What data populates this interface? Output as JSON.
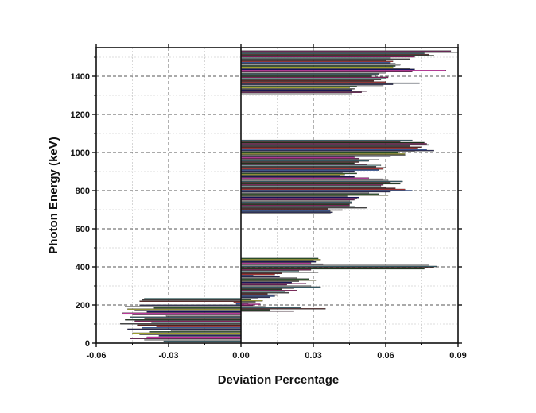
{
  "chart_data": {
    "type": "bar",
    "orientation": "horizontal",
    "title": "",
    "xlabel": "Deviation Percentage",
    "ylabel": "Photon Energy (keV)",
    "xlim": [
      -0.06,
      0.09
    ],
    "ylim": [
      0,
      1550
    ],
    "xticks": [
      -0.06,
      -0.03,
      0.0,
      0.03,
      0.06,
      0.09
    ],
    "xtick_labels": [
      "-0.06",
      "-0.03",
      "0.00",
      "0.03",
      "0.06",
      "0.09"
    ],
    "yticks": [
      0,
      200,
      400,
      600,
      800,
      1000,
      1200,
      1400
    ],
    "ytick_labels": [
      "0",
      "200",
      "400",
      "600",
      "800",
      "1000",
      "1200",
      "1400"
    ],
    "grid": true,
    "palette": [
      "#3a6b78",
      "#d9d9d9",
      "#7a1a60",
      "#ff33cc",
      "#000066",
      "#808080",
      "#cccc33",
      "#2a5c2a",
      "#c0c0c0",
      "#2a2a60",
      "#3366cc",
      "#cc3333",
      "#6a1a1a",
      "#4a4a4a",
      "#99cccc",
      "#a01a6a",
      "#1a3a1a",
      "#663333"
    ],
    "bar_thickness_kev": 4.5,
    "bars": [
      [
        10,
        -0.032
      ],
      [
        17,
        -0.04
      ],
      [
        24,
        -0.046
      ],
      [
        31,
        -0.039
      ],
      [
        38,
        -0.034
      ],
      [
        45,
        -0.042
      ],
      [
        52,
        -0.045
      ],
      [
        59,
        -0.038
      ],
      [
        66,
        -0.029
      ],
      [
        73,
        -0.047
      ],
      [
        80,
        -0.041
      ],
      [
        87,
        -0.035
      ],
      [
        94,
        -0.043
      ],
      [
        101,
        -0.05
      ],
      [
        108,
        -0.037
      ],
      [
        115,
        -0.044
      ],
      [
        122,
        -0.048
      ],
      [
        129,
        -0.04
      ],
      [
        136,
        -0.046
      ],
      [
        143,
        -0.031
      ],
      [
        150,
        -0.045
      ],
      [
        157,
        -0.049
      ],
      [
        164,
        -0.039
      ],
      [
        171,
        -0.044
      ],
      [
        178,
        -0.047
      ],
      [
        185,
        -0.036
      ],
      [
        192,
        -0.048
      ],
      [
        199,
        -0.042
      ],
      [
        206,
        -0.002
      ],
      [
        213,
        -0.003
      ],
      [
        220,
        -0.042
      ],
      [
        227,
        -0.041
      ],
      [
        234,
        -0.04
      ],
      [
        168,
        0.022
      ],
      [
        174,
        0.012
      ],
      [
        180,
        0.035
      ],
      [
        186,
        0.025
      ],
      [
        192,
        0.01
      ],
      [
        198,
        0.005
      ],
      [
        204,
        0.008
      ],
      [
        210,
        0.003
      ],
      [
        216,
        0.006
      ],
      [
        222,
        0.009
      ],
      [
        228,
        0.004
      ],
      [
        234,
        0.007
      ],
      [
        240,
        0.012
      ],
      [
        246,
        0.014
      ],
      [
        252,
        0.015
      ],
      [
        258,
        0.011
      ],
      [
        264,
        0.02
      ],
      [
        270,
        0.018
      ],
      [
        276,
        0.023
      ],
      [
        282,
        0.017
      ],
      [
        288,
        0.022
      ],
      [
        294,
        0.033
      ],
      [
        300,
        0.029
      ],
      [
        306,
        0.019
      ],
      [
        312,
        0.027
      ],
      [
        318,
        0.021
      ],
      [
        324,
        0.024
      ],
      [
        330,
        0.031
      ],
      [
        336,
        0.028
      ],
      [
        342,
        0.023
      ],
      [
        348,
        0.016
      ],
      [
        354,
        0.005
      ],
      [
        360,
        0.014
      ],
      [
        366,
        0.017
      ],
      [
        372,
        0.032
      ],
      [
        378,
        0.024
      ],
      [
        384,
        0.029
      ],
      [
        390,
        0.076
      ],
      [
        396,
        0.08
      ],
      [
        402,
        0.081
      ],
      [
        408,
        0.078
      ],
      [
        414,
        0.034
      ],
      [
        420,
        0.029
      ],
      [
        426,
        0.031
      ],
      [
        432,
        0.03
      ],
      [
        438,
        0.033
      ],
      [
        444,
        0.032
      ],
      [
        680,
        0.037
      ],
      [
        686,
        0.038
      ],
      [
        692,
        0.037
      ],
      [
        698,
        0.042
      ],
      [
        704,
        0.036
      ],
      [
        710,
        0.052
      ],
      [
        716,
        0.047
      ],
      [
        722,
        0.045
      ],
      [
        728,
        0.045
      ],
      [
        734,
        0.046
      ],
      [
        740,
        0.046
      ],
      [
        746,
        0.045
      ],
      [
        752,
        0.047
      ],
      [
        758,
        0.048
      ],
      [
        764,
        0.049
      ],
      [
        770,
        0.044
      ],
      [
        776,
        0.061
      ],
      [
        782,
        0.057
      ],
      [
        788,
        0.053
      ],
      [
        794,
        0.062
      ],
      [
        800,
        0.071
      ],
      [
        806,
        0.068
      ],
      [
        812,
        0.064
      ],
      [
        818,
        0.06
      ],
      [
        824,
        0.058
      ],
      [
        830,
        0.059
      ],
      [
        836,
        0.066
      ],
      [
        842,
        0.062
      ],
      [
        848,
        0.067
      ],
      [
        854,
        0.061
      ],
      [
        860,
        0.059
      ],
      [
        866,
        0.053
      ],
      [
        872,
        0.047
      ],
      [
        878,
        0.041
      ],
      [
        884,
        0.043
      ],
      [
        890,
        0.048
      ],
      [
        896,
        0.042
      ],
      [
        902,
        0.047
      ],
      [
        908,
        0.057
      ],
      [
        914,
        0.059
      ],
      [
        920,
        0.06
      ],
      [
        926,
        0.056
      ],
      [
        932,
        0.058
      ],
      [
        938,
        0.052
      ],
      [
        944,
        0.047
      ],
      [
        950,
        0.049
      ],
      [
        956,
        0.053
      ],
      [
        962,
        0.057
      ],
      [
        968,
        0.049
      ],
      [
        974,
        0.047
      ],
      [
        980,
        0.062
      ],
      [
        986,
        0.068
      ],
      [
        992,
        0.068
      ],
      [
        998,
        0.065
      ],
      [
        1004,
        0.072
      ],
      [
        1010,
        0.08
      ],
      [
        1016,
        0.077
      ],
      [
        1022,
        0.073
      ],
      [
        1028,
        0.075
      ],
      [
        1034,
        0.07
      ],
      [
        1040,
        0.078
      ],
      [
        1046,
        0.077
      ],
      [
        1052,
        0.076
      ],
      [
        1058,
        0.066
      ],
      [
        1064,
        0.071
      ],
      [
        1310,
        0.046
      ],
      [
        1316,
        0.05
      ],
      [
        1322,
        0.052
      ],
      [
        1328,
        0.046
      ],
      [
        1334,
        0.047
      ],
      [
        1340,
        0.045
      ],
      [
        1346,
        0.048
      ],
      [
        1352,
        0.059
      ],
      [
        1358,
        0.063
      ],
      [
        1364,
        0.074
      ],
      [
        1370,
        0.06
      ],
      [
        1376,
        0.055
      ],
      [
        1382,
        0.058
      ],
      [
        1388,
        0.06
      ],
      [
        1394,
        0.061
      ],
      [
        1400,
        0.054
      ],
      [
        1406,
        0.056
      ],
      [
        1412,
        0.057
      ],
      [
        1418,
        0.06
      ],
      [
        1424,
        0.071
      ],
      [
        1430,
        0.085
      ],
      [
        1436,
        0.072
      ],
      [
        1442,
        0.07
      ],
      [
        1448,
        0.063
      ],
      [
        1454,
        0.064
      ],
      [
        1460,
        0.066
      ],
      [
        1466,
        0.064
      ],
      [
        1472,
        0.062
      ],
      [
        1478,
        0.063
      ],
      [
        1484,
        0.06
      ],
      [
        1490,
        0.07
      ],
      [
        1496,
        0.062
      ],
      [
        1502,
        0.072
      ],
      [
        1508,
        0.08
      ],
      [
        1514,
        0.078
      ],
      [
        1520,
        0.076
      ],
      [
        1526,
        0.09
      ],
      [
        1532,
        0.087
      ]
    ]
  }
}
